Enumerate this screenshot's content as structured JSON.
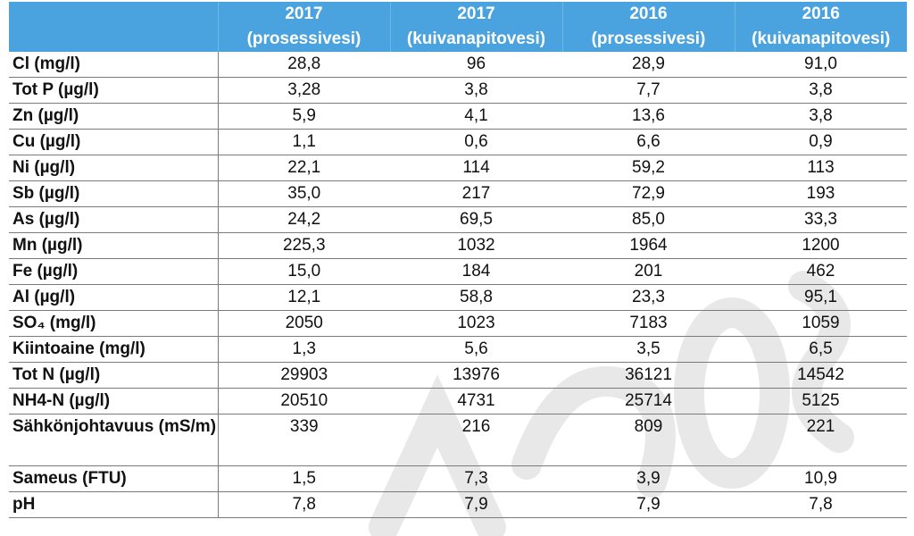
{
  "table": {
    "headers": [
      {
        "year": "",
        "type": ""
      },
      {
        "year": "2017",
        "type": "(prosessivesi)"
      },
      {
        "year": "2017",
        "type": "(kuivanapitovesi)"
      },
      {
        "year": "2016",
        "type": "(prosessivesi)"
      },
      {
        "year": "2016",
        "type": "(kuivanapitovesi)"
      }
    ],
    "rows": [
      {
        "label": "Cl (mg/l)",
        "values": [
          "28,8",
          "96",
          "28,9",
          "91,0"
        ]
      },
      {
        "label": "Tot P (µg/l)",
        "values": [
          "3,28",
          "3,8",
          "7,7",
          "3,8"
        ]
      },
      {
        "label": "Zn (µg/l)",
        "values": [
          "5,9",
          "4,1",
          "13,6",
          "3,8"
        ]
      },
      {
        "label": "Cu (µg/l)",
        "values": [
          "1,1",
          "0,6",
          "6,6",
          "0,9"
        ]
      },
      {
        "label": "Ni (µg/l)",
        "values": [
          "22,1",
          "114",
          "59,2",
          "113"
        ]
      },
      {
        "label": "Sb (µg/l)",
        "values": [
          "35,0",
          "217",
          "72,9",
          "193"
        ]
      },
      {
        "label": "As (µg/l)",
        "values": [
          "24,2",
          "69,5",
          "85,0",
          "33,3"
        ]
      },
      {
        "label": "Mn (µg/l)",
        "values": [
          "225,3",
          "1032",
          "1964",
          "1200"
        ]
      },
      {
        "label": "Fe (µg/l)",
        "values": [
          "15,0",
          "184",
          "201",
          "462"
        ]
      },
      {
        "label": "Al (µg/l)",
        "values": [
          "12,1",
          "58,8",
          "23,3",
          "95,1"
        ]
      },
      {
        "label": "SO₄ (mg/l)",
        "values": [
          "2050",
          "1023",
          "7183",
          "1059"
        ]
      },
      {
        "label": "Kiintoaine (mg/l)",
        "values": [
          "1,3",
          "5,6",
          "3,5",
          "6,5"
        ]
      },
      {
        "label": "Tot N (µg/l)",
        "values": [
          "29903",
          "13976",
          "36121",
          "14542"
        ]
      },
      {
        "label": "NH4-N (µg/l)",
        "values": [
          "20510",
          "4731",
          "25714",
          "5125"
        ]
      },
      {
        "label": "Sähkönjohtavuus (mS/m)",
        "values": [
          "339",
          "216",
          "809",
          "221"
        ]
      },
      {
        "label": "Sameus (FTU)",
        "values": [
          "1,5",
          "7,3",
          "3,9",
          "10,9"
        ]
      },
      {
        "label": "pH",
        "values": [
          "7,8",
          "7,9",
          "7,9",
          "7,8"
        ]
      }
    ]
  },
  "colors": {
    "header_bg": "#4aa3df",
    "header_text": "#ffffff",
    "rule": "#7a7a7a"
  }
}
